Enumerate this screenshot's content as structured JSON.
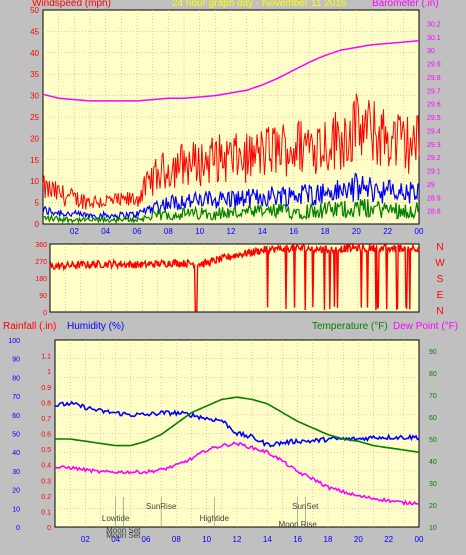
{
  "header": {
    "left_title": "Windspeed (mph)",
    "center_title": "24 hour graph day - November 11 2016",
    "right_title": "Barometer (.in)"
  },
  "colors": {
    "background": "#c0c0c0",
    "plot_bg": "#ffffc8",
    "grid": "#ff8080",
    "wind": "#ff0000",
    "wind_avg": "#0000ff",
    "wind_low": "#008000",
    "barometer": "#ff00ff",
    "direction": "#ff0000",
    "humidity": "#0000ff",
    "temperature": "#008000",
    "dewpoint": "#ff00ff",
    "rain_label": "#ff0000",
    "event_text": "#404040"
  },
  "x_ticks": [
    "02",
    "04",
    "06",
    "08",
    "10",
    "12",
    "14",
    "16",
    "18",
    "20",
    "22",
    "00"
  ],
  "direction": {
    "compass": [
      "N",
      "W",
      "S",
      "E",
      "N"
    ],
    "y_ticks": [
      "360",
      "270",
      "180",
      "90",
      "0"
    ]
  },
  "bottom": {
    "rain_label": "Rainfall (.in)",
    "humidity_label": "Humidity (%)",
    "temp_label": "Temperature (°F)",
    "dew_label": "Dew Point (°F)"
  },
  "events": [
    {
      "label": "Lowtide",
      "hour": 4
    },
    {
      "label": "Moon Set",
      "hour": 4.5
    },
    {
      "label": "Moon Set",
      "hour": 4.5
    },
    {
      "label": "SunRise",
      "hour": 7
    },
    {
      "label": "Hightide",
      "hour": 10.5
    },
    {
      "label": "SunSet",
      "hour": 16.5
    },
    {
      "label": "Moon Rise",
      "hour": 16
    }
  ],
  "chart_data": [
    {
      "type": "line",
      "title": "Windspeed (mph) / Barometer (.in)",
      "x_unit": "hour",
      "xlim": [
        0,
        24
      ],
      "y_left": {
        "label": "Windspeed (mph)",
        "ylim": [
          0,
          50
        ],
        "ticks": [
          0,
          5,
          10,
          15,
          20,
          25,
          30,
          35,
          40,
          45,
          50
        ]
      },
      "y_right": {
        "label": "Barometer (.in)",
        "ylim": [
          28.7,
          30.3
        ],
        "ticks": [
          "28.8",
          "28.9",
          "29",
          "29.1",
          "29.2",
          "29.3",
          "29.4",
          "29.5",
          "29.6",
          "29.7",
          "29.8",
          "29.9",
          "30",
          "30.1",
          "30.2"
        ]
      },
      "series": [
        {
          "name": "Windspeed (mph)",
          "axis": "left",
          "x": [
            0,
            1,
            2,
            3,
            4,
            5,
            6,
            7,
            8,
            9,
            10,
            11,
            12,
            13,
            14,
            15,
            16,
            17,
            18,
            19,
            20,
            21,
            22,
            23,
            24
          ],
          "values": [
            7,
            6,
            5,
            4.5,
            4.5,
            4.5,
            5,
            9,
            11,
            12,
            12,
            13,
            13,
            13,
            14,
            15,
            15,
            16,
            16,
            17,
            19,
            18,
            17,
            16,
            16
          ]
        },
        {
          "name": "Barometer (.in)",
          "axis": "right",
          "x": [
            0,
            1,
            2,
            3,
            4,
            5,
            6,
            7,
            8,
            9,
            10,
            11,
            12,
            13,
            14,
            15,
            16,
            17,
            18,
            19,
            20,
            21,
            22,
            23,
            24
          ],
          "values": [
            29.67,
            29.64,
            29.63,
            29.62,
            29.62,
            29.62,
            29.62,
            29.63,
            29.64,
            29.64,
            29.65,
            29.66,
            29.68,
            29.7,
            29.74,
            29.79,
            29.85,
            29.91,
            29.96,
            30.0,
            30.02,
            30.04,
            30.05,
            30.06,
            30.07
          ]
        }
      ]
    },
    {
      "type": "scatter",
      "title": "Wind Direction",
      "x_unit": "hour",
      "xlim": [
        0,
        24
      ],
      "ylim": [
        0,
        360
      ],
      "series": [
        {
          "name": "Direction",
          "x": [
            0,
            2,
            4,
            6,
            8,
            10,
            12,
            14,
            16,
            18,
            20,
            22,
            24
          ],
          "values": [
            240,
            250,
            255,
            250,
            260,
            255,
            300,
            330,
            340,
            330,
            340,
            335,
            340
          ]
        }
      ]
    },
    {
      "type": "line",
      "title": "Rainfall / Humidity / Temperature / Dew Point",
      "x_unit": "hour",
      "xlim": [
        0,
        24
      ],
      "y_left_rain": {
        "label": "Rainfall (.in)",
        "ylim": [
          0,
          1.2
        ],
        "ticks": [
          "0",
          "0.1",
          "0.2",
          "0.3",
          "0.4",
          "0.5",
          "0.6",
          "0.7",
          "0.8",
          "0.9",
          "1",
          "1.1"
        ]
      },
      "y_left_humidity": {
        "label": "Humidity (%)",
        "ylim": [
          0,
          100
        ],
        "ticks": [
          "0",
          "10",
          "20",
          "30",
          "40",
          "50",
          "60",
          "70",
          "80",
          "90",
          "100"
        ]
      },
      "y_right": {
        "label": "Temperature (°F)",
        "ylim": [
          10,
          95
        ],
        "ticks": [
          "10",
          "20",
          "30",
          "40",
          "50",
          "60",
          "70",
          "80",
          "90"
        ]
      },
      "series": [
        {
          "name": "Humidity (%)",
          "axis": "humidity",
          "x": [
            0,
            1,
            2,
            3,
            4,
            5,
            6,
            7,
            8,
            9,
            10,
            11,
            12,
            13,
            14,
            15,
            16,
            17,
            18,
            19,
            20,
            21,
            22,
            23,
            24
          ],
          "values": [
            65,
            66,
            64,
            62,
            61,
            60,
            60,
            61,
            61,
            60,
            58,
            57,
            50,
            48,
            44,
            45,
            46,
            46,
            47,
            47,
            47,
            48,
            48,
            48,
            48
          ]
        },
        {
          "name": "Temperature (°F)",
          "axis": "right",
          "x": [
            0,
            1,
            2,
            3,
            4,
            5,
            6,
            7,
            8,
            9,
            10,
            11,
            12,
            13,
            14,
            15,
            16,
            17,
            18,
            19,
            20,
            21,
            22,
            23,
            24
          ],
          "values": [
            50,
            50,
            49,
            48,
            47,
            47,
            49,
            52,
            57,
            62,
            65,
            68,
            69,
            68,
            66,
            62,
            58,
            55,
            52,
            50,
            49,
            47,
            46,
            45,
            44
          ]
        },
        {
          "name": "Dew Point (°F)",
          "axis": "right",
          "x": [
            0,
            1,
            2,
            3,
            4,
            5,
            6,
            7,
            8,
            9,
            10,
            11,
            12,
            13,
            14,
            15,
            16,
            17,
            18,
            19,
            20,
            21,
            22,
            23,
            24
          ],
          "values": [
            37,
            37,
            36,
            35,
            35,
            35,
            35,
            36,
            38,
            41,
            45,
            47,
            48,
            46,
            44,
            40,
            35,
            32,
            28,
            26,
            24,
            23,
            22,
            21,
            21
          ]
        }
      ]
    }
  ]
}
